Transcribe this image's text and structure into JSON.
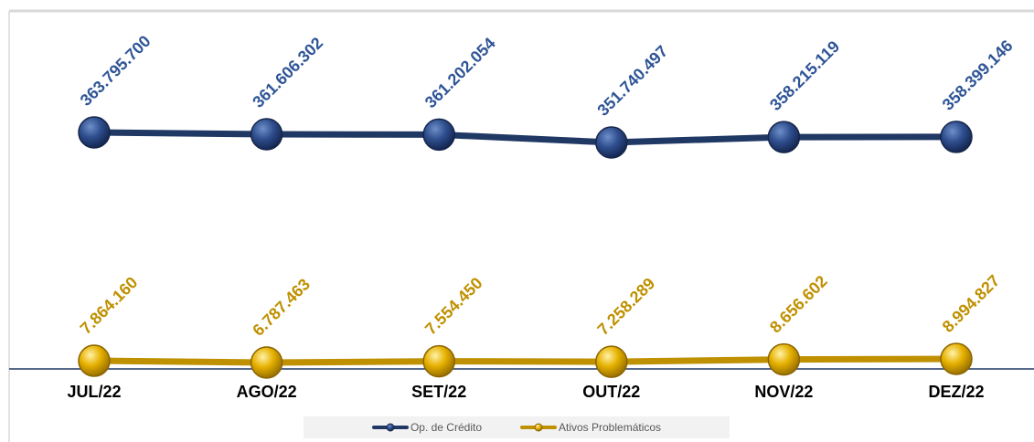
{
  "chart_data": {
    "type": "line",
    "categories": [
      "JUL/22",
      "AGO/22",
      "SET/22",
      "OUT/22",
      "NOV/22",
      "DEZ/22"
    ],
    "series": [
      {
        "name": "Op. de Crédito",
        "values": [
          363795700,
          361606302,
          361202054,
          351740497,
          358215119,
          358399146
        ],
        "labels": [
          "363.795.700",
          "361.606.302",
          "361.202.054",
          "351.740.497",
          "358.215.119",
          "358.399.146"
        ],
        "color": "#203864"
      },
      {
        "name": "Ativos Problemáticos",
        "values": [
          7864160,
          6787463,
          7554450,
          7258289,
          8656602,
          8994827
        ],
        "labels": [
          "7.864.160",
          "6.787.463",
          "7.554.450",
          "7.258.289",
          "8.656.602",
          "8.994.827"
        ],
        "color": "#bf9000"
      }
    ],
    "label_colors": {
      "Op. de Crédito": "#2f5597",
      "Ativos Problemáticos": "#bf9000"
    },
    "legend_position": "bottom",
    "grid": false
  }
}
